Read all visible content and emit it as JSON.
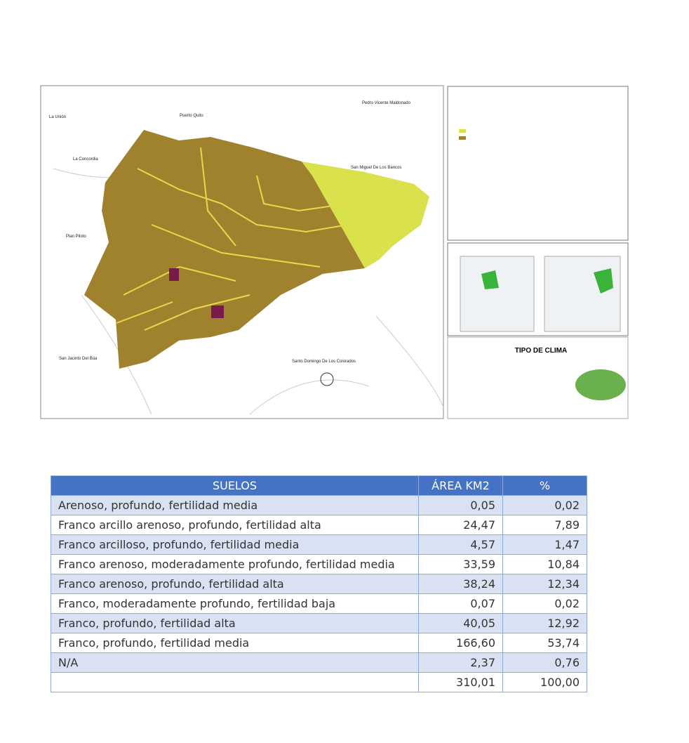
{
  "map": {
    "title": "TIPO DE CLIMA",
    "labels": [
      "La Unión",
      "Puerto Quito",
      "Pedro Vicente Maldonado",
      "La Concordia",
      "San Miguel De Los Bancos",
      "Plan Piloto",
      "San Jacinto Del Búa",
      "Santo Domingo De Los Colorados"
    ]
  },
  "table": {
    "header": [
      "SUELOS",
      "ÁREA KM2",
      "%"
    ],
    "rows": [
      [
        "Arenoso, profundo, fertilidad media",
        "0,05",
        "0,02"
      ],
      [
        "Franco arcillo arenoso, profundo, fertilidad alta",
        "24,47",
        "7,89"
      ],
      [
        "Franco arcilloso, profundo, fertilidad media",
        "4,57",
        "1,47"
      ],
      [
        "Franco arenoso, moderadamente profundo, fertilidad media",
        "33,59",
        "10,84"
      ],
      [
        "Franco arenoso, profundo, fertilidad alta",
        "38,24",
        "12,34"
      ],
      [
        "Franco, moderadamente profundo, fertilidad baja",
        "0,07",
        "0,02"
      ],
      [
        "Franco, profundo, fertilidad alta",
        "40,05",
        "12,92"
      ],
      [
        "Franco, profundo, fertilidad media",
        "166,60",
        "53,74"
      ],
      [
        "N/A",
        "2,37",
        "0,76"
      ],
      [
        null,
        "310,01",
        "100,00"
      ]
    ]
  }
}
